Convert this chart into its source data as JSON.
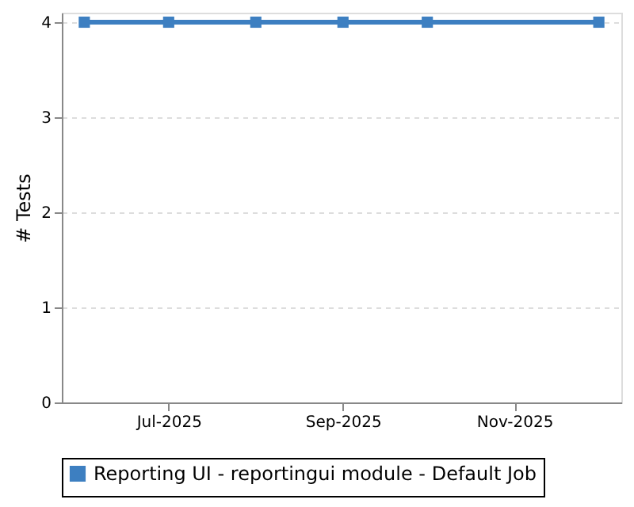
{
  "chart_data": {
    "type": "line",
    "x": [
      "2025-06-01",
      "2025-07-01",
      "2025-08-01",
      "2025-09-01",
      "2025-10-01",
      "2025-12-01"
    ],
    "series": [
      {
        "name": "Reporting UI - reportingui module - Default Job",
        "color": "#3d7fc1",
        "values": [
          4,
          4,
          4,
          4,
          4,
          4
        ]
      }
    ],
    "ylabel": "# Tests",
    "xlim": [
      "2025-05-24",
      "2025-12-09"
    ],
    "xticks": [
      {
        "value": "2025-07-01",
        "label": "Jul-2025"
      },
      {
        "value": "2025-09-01",
        "label": "Sep-2025"
      },
      {
        "value": "2025-11-01",
        "label": "Nov-2025"
      }
    ],
    "ylim": [
      0,
      4.1
    ],
    "yticks": [
      0,
      1,
      2,
      3,
      4
    ],
    "grid": "y",
    "legend": "bottom",
    "marker": "square",
    "line_style": "solid"
  }
}
